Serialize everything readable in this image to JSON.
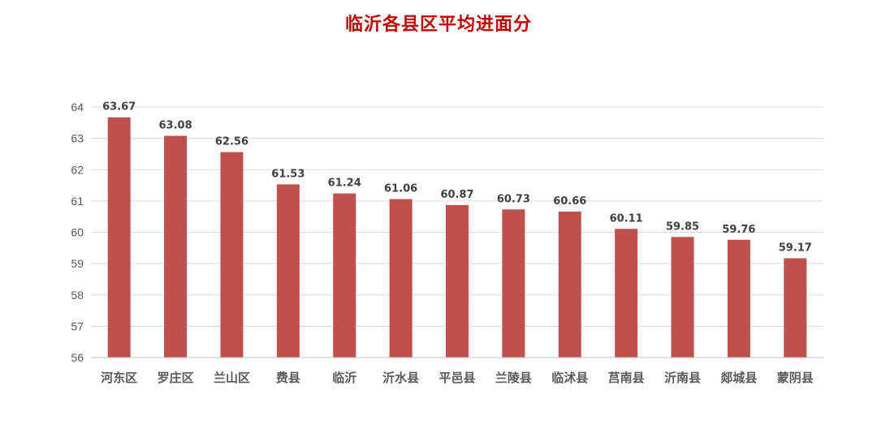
{
  "chart_data": {
    "type": "bar",
    "title": "临沂各县区平均进面分",
    "xlabel": "",
    "ylabel": "",
    "categories": [
      "河东区",
      "罗庄区",
      "兰山区",
      "费县",
      "临沂",
      "沂水县",
      "平邑县",
      "兰陵县",
      "临沭县",
      "莒南县",
      "沂南县",
      "郯城县",
      "蒙阴县"
    ],
    "values": [
      63.67,
      63.08,
      62.56,
      61.53,
      61.24,
      61.06,
      60.87,
      60.73,
      60.66,
      60.11,
      59.85,
      59.76,
      59.17
    ],
    "data_labels": [
      "63.67",
      "63.08",
      "62.56",
      "61.53",
      "61.24",
      "61.06",
      "60.87",
      "60.73",
      "60.66",
      "60.11",
      "59.85",
      "59.76",
      "59.17"
    ],
    "ylim": [
      56,
      64
    ],
    "yticks": [
      "56",
      "57",
      "58",
      "59",
      "60",
      "61",
      "62",
      "63",
      "64"
    ],
    "grid": true,
    "legend": "none",
    "bar_color": "#c0504d",
    "title_color": "#c00000"
  }
}
